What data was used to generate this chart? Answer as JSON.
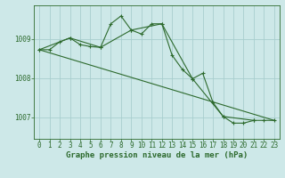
{
  "background_color": "#cde8e8",
  "grid_color": "#a8cece",
  "line_color": "#2d6a2d",
  "xlabel": "Graphe pression niveau de la mer (hPa)",
  "ylim": [
    1006.45,
    1009.85
  ],
  "xlim": [
    -0.5,
    23.5
  ],
  "yticks": [
    1007,
    1008,
    1009
  ],
  "xticks": [
    0,
    1,
    2,
    3,
    4,
    5,
    6,
    7,
    8,
    9,
    10,
    11,
    12,
    13,
    14,
    15,
    16,
    17,
    18,
    19,
    20,
    21,
    22,
    23
  ],
  "series1_x": [
    0,
    1,
    2,
    3,
    4,
    5,
    6,
    7,
    8,
    9,
    10,
    11,
    12,
    13,
    14,
    15,
    16,
    17,
    18,
    19,
    20,
    21,
    22,
    23
  ],
  "series1_y": [
    1008.72,
    1008.72,
    1008.92,
    1009.02,
    1008.85,
    1008.8,
    1008.78,
    1009.38,
    1009.58,
    1009.22,
    1009.12,
    1009.38,
    1009.38,
    1008.58,
    1008.22,
    1007.98,
    1008.12,
    1007.38,
    1007.02,
    1006.85,
    1006.85,
    1006.92,
    1006.92,
    1006.92
  ],
  "series2_x": [
    0,
    3,
    6,
    9,
    12,
    15,
    18,
    21
  ],
  "series2_y": [
    1008.72,
    1009.02,
    1008.78,
    1009.22,
    1009.38,
    1007.98,
    1007.02,
    1006.92
  ],
  "series3_x": [
    0,
    23
  ],
  "series3_y": [
    1008.72,
    1006.92
  ],
  "font_size_label": 6.5,
  "font_size_tick": 5.5
}
